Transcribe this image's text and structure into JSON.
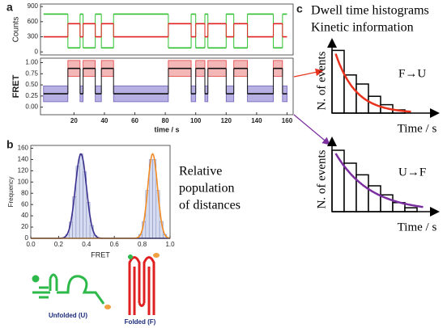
{
  "chart_data": [
    {
      "type": "line",
      "panel": "a",
      "ylabel": "Counts",
      "step": true,
      "x": [
        0,
        16,
        24,
        26,
        34,
        38,
        46,
        82,
        97,
        100,
        106,
        108,
        120,
        125,
        134,
        151,
        157,
        160
      ],
      "series": [
        {
          "color": "#2ec02e",
          "values": [
            750,
            80,
            750,
            80,
            750,
            80,
            750,
            80,
            750,
            80,
            750,
            80,
            750,
            80,
            750,
            80,
            750,
            750
          ]
        },
        {
          "color": "#e02020",
          "values": [
            300,
            560,
            300,
            560,
            300,
            560,
            300,
            560,
            300,
            560,
            300,
            560,
            300,
            560,
            300,
            560,
            300,
            300
          ]
        }
      ],
      "xlim": [
        -2,
        164
      ],
      "ylim": [
        -60,
        950
      ],
      "yticks": [
        0,
        300,
        600,
        900
      ]
    },
    {
      "type": "line",
      "ylabel": "FRET",
      "xlabel": "time / s",
      "step": true,
      "x": [
        0,
        16,
        24,
        26,
        34,
        38,
        46,
        82,
        97,
        100,
        106,
        108,
        120,
        125,
        134,
        151,
        157,
        160
      ],
      "color": "#111111",
      "values": [
        0.3,
        0.87,
        0.3,
        0.87,
        0.3,
        0.87,
        0.3,
        0.87,
        0.3,
        0.87,
        0.3,
        0.87,
        0.3,
        0.87,
        0.3,
        0.87,
        0.3,
        0.3
      ],
      "box_colors": [
        "#b7b1e3",
        "#f4b7b7"
      ],
      "box_strokes": [
        "#6d5fb8",
        "#e04040"
      ],
      "xlim": [
        -2,
        164
      ],
      "ylim": [
        -0.17,
        1.1
      ],
      "xticks": [
        20,
        40,
        60,
        80,
        100,
        120,
        140,
        160
      ],
      "yticks": [
        {
          "value": 0,
          "label": "0.00"
        },
        0.25,
        {
          "value": 0.5,
          "label": "0.50"
        },
        0.75,
        {
          "value": 1,
          "label": "1.00"
        }
      ]
    },
    {
      "type": "histogram",
      "panel": "b",
      "xlabel": "FRET",
      "ylabel": "Frequency",
      "color": "#d6dcf0",
      "bins": [
        0.2,
        0.225,
        0.25,
        0.275,
        0.3,
        0.325,
        0.35,
        0.375,
        0.4,
        0.425,
        0.45,
        0.475,
        0.5,
        0.525,
        0.55,
        0.575,
        0.6,
        0.625,
        0.65,
        0.675,
        0.7,
        0.725,
        0.75,
        0.775,
        0.8,
        0.825,
        0.85,
        0.875,
        0.9,
        0.925,
        0.95,
        0.975,
        1.0
      ],
      "values": [
        0,
        1,
        7,
        29,
        74,
        128,
        150,
        118,
        64,
        23,
        5,
        1,
        0,
        0,
        0,
        0,
        0,
        0,
        0,
        0,
        0,
        0,
        1,
        7,
        30,
        85,
        140,
        140,
        85,
        30,
        7,
        1
      ],
      "fits": [
        {
          "color": "#3a2f8f",
          "mean": 0.36,
          "sigma": 0.04,
          "amplitude": 150
        },
        {
          "color": "#f08a24",
          "mean": 0.875,
          "sigma": 0.035,
          "amplitude": 150
        }
      ],
      "xlim": [
        0,
        1
      ],
      "ylim": [
        0,
        165
      ],
      "xticks": [
        {
          "value": 0,
          "label": "0.0"
        },
        0.2,
        0.4,
        0.6,
        0.8,
        {
          "value": 1,
          "label": "1.0"
        }
      ],
      "yticks": [
        0,
        20,
        40,
        60,
        80,
        100,
        120,
        140,
        160
      ],
      "annotation": [
        "Relative",
        "population",
        "of distances"
      ],
      "structures": [
        {
          "label": "Unfolded (U)",
          "color": "#2db84a"
        },
        {
          "label": "Folded (F)",
          "color": "#e02020"
        }
      ]
    },
    {
      "type": "histogram",
      "panel": "c",
      "title": [
        "Dwell time histograms",
        "Kinetic information"
      ],
      "xlabel": "Time / s",
      "ylabel": "N. of events",
      "annotation": "F→U",
      "color": "#ffffff",
      "bins": [
        0,
        1,
        2,
        3,
        4,
        5,
        6
      ],
      "values": [
        97,
        59,
        45,
        26,
        13,
        5
      ],
      "decay": {
        "color": "#e8321e",
        "amplitude": 110,
        "rate": 0.6
      },
      "xlim": [
        0,
        8
      ],
      "ylim": [
        0,
        100
      ]
    },
    {
      "type": "histogram",
      "xlabel": "Time / s",
      "ylabel": "N. of events",
      "annotation": "U→F",
      "color": "#ffffff",
      "bins": [
        0,
        1,
        2,
        3,
        4,
        5,
        6,
        7
      ],
      "values": [
        95,
        75,
        57,
        40,
        26,
        14,
        6
      ],
      "decay": {
        "color": "#7a2ea0",
        "amplitude": 100,
        "rate": 0.35
      },
      "xlim": [
        0,
        8
      ],
      "ylim": [
        0,
        100
      ]
    }
  ]
}
